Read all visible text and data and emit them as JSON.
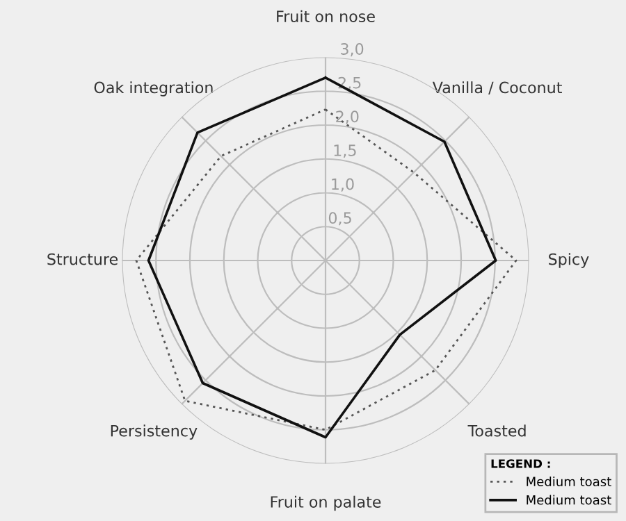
{
  "chart_data": {
    "type": "radar",
    "categories": [
      "Fruit on nose",
      "Vanilla / Coconut",
      "Spicy",
      "Toasted",
      "Fruit on palate",
      "Persistency",
      "Structure",
      "Oak integration"
    ],
    "series": [
      {
        "name": "Medium toast",
        "color": "#555555",
        "line_style": "dotted",
        "values": [
          2.23,
          1.84,
          2.81,
          2.29,
          2.5,
          2.93,
          2.79,
          2.18
        ]
      },
      {
        "name": "Medium toast",
        "color": "#111111",
        "line_style": "solid",
        "values": [
          2.7,
          2.48,
          2.51,
          1.55,
          2.61,
          2.56,
          2.61,
          2.67
        ]
      }
    ],
    "ylim": [
      0,
      3.0
    ],
    "yticks": [
      {
        "value": 0.5,
        "label": "0,5"
      },
      {
        "value": 1.0,
        "label": "1,0"
      },
      {
        "value": 1.5,
        "label": "1,5"
      },
      {
        "value": 2.0,
        "label": "2,0"
      },
      {
        "value": 2.5,
        "label": "2,5"
      },
      {
        "value": 3.0,
        "label": "3,0"
      }
    ],
    "grid": true,
    "legend": "bottom right",
    "legend_title": "LEGEND :",
    "marker": "none"
  }
}
